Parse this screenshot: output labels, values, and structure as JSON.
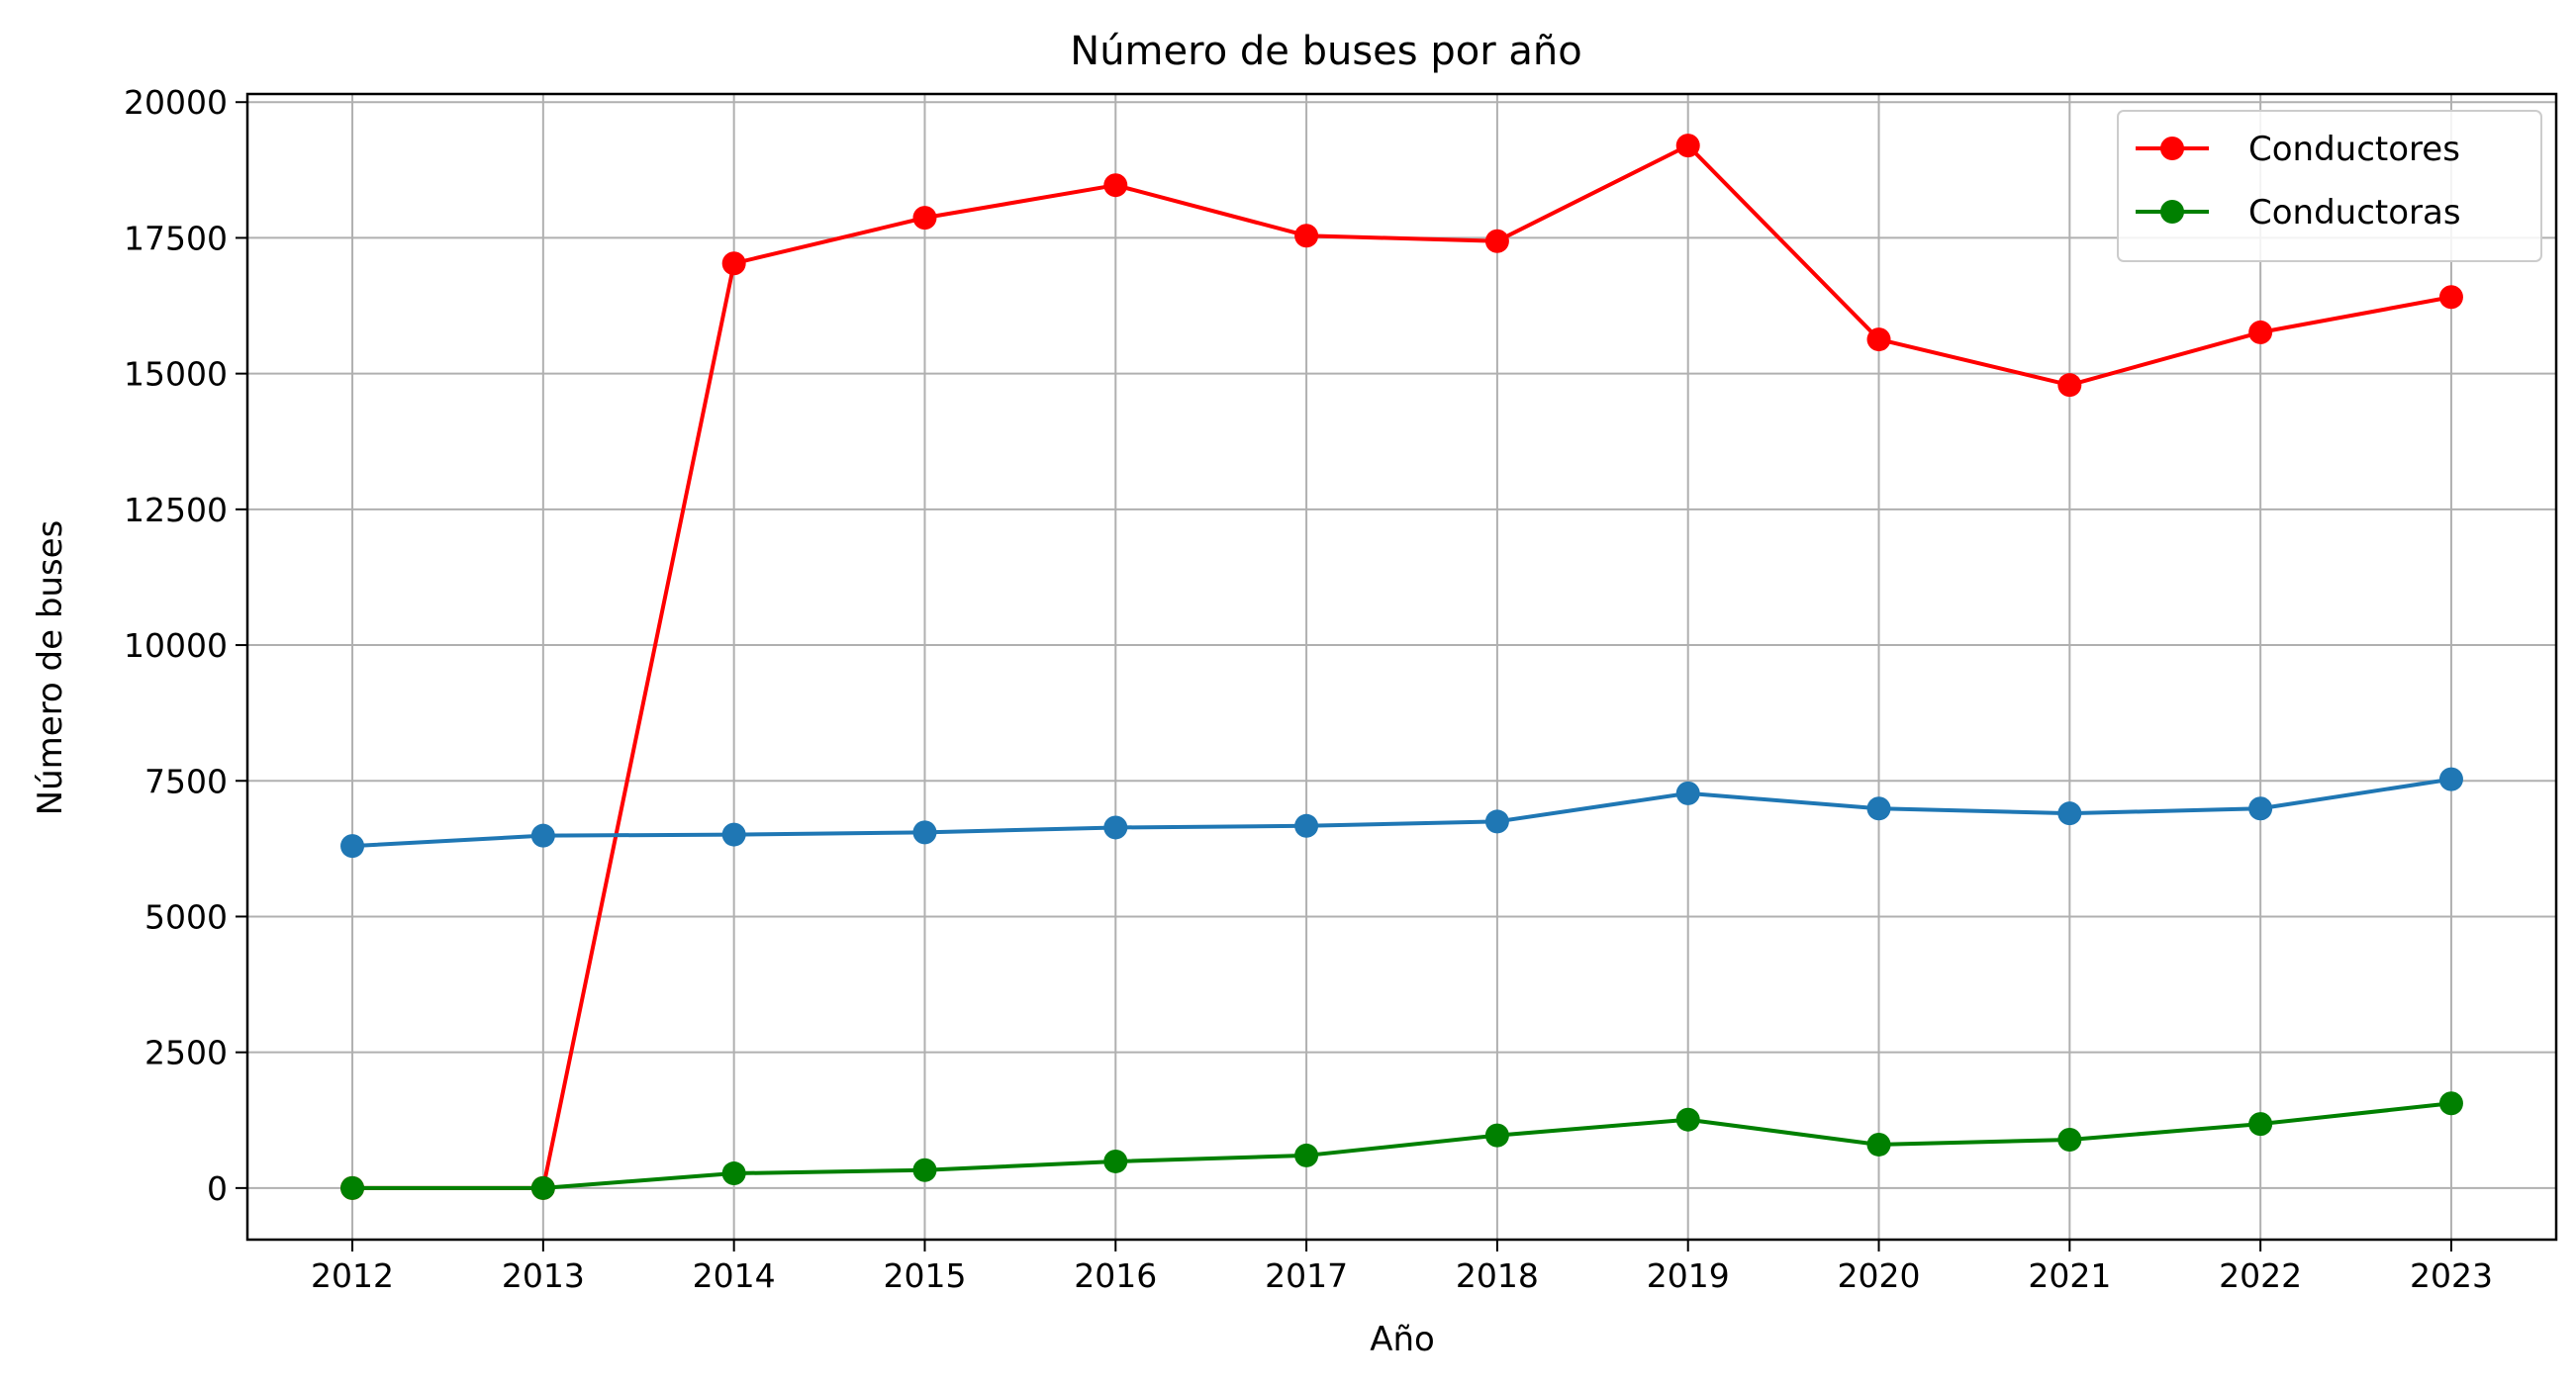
{
  "chart_data": {
    "type": "line",
    "title": "Número de buses por año",
    "xlabel": "Año",
    "ylabel": "Número de buses",
    "x": [
      2012,
      2013,
      2014,
      2015,
      2016,
      2017,
      2018,
      2019,
      2020,
      2021,
      2022,
      2023
    ],
    "xticks": [
      "2012",
      "2013",
      "2014",
      "2015",
      "2016",
      "2017",
      "2018",
      "2019",
      "2020",
      "2021",
      "2022",
      "2023"
    ],
    "yticks": [
      "0",
      "2500",
      "5000",
      "7500",
      "10000",
      "12500",
      "15000",
      "17500",
      "20000"
    ],
    "ylim": [
      -950,
      20150
    ],
    "xlim": [
      2011.45,
      2023.55
    ],
    "grid": true,
    "legend_position": "top-right",
    "series": [
      {
        "name": "Conductores",
        "color": "#ff0000",
        "marker": "circle",
        "in_legend": true,
        "values": [
          0,
          0,
          17030,
          17870,
          18470,
          17540,
          17440,
          19200,
          15630,
          14790,
          15760,
          16410
        ]
      },
      {
        "name": "Conductoras",
        "color": "#008000",
        "marker": "circle",
        "in_legend": true,
        "values": [
          0,
          0,
          270,
          330,
          490,
          600,
          970,
          1260,
          800,
          890,
          1180,
          1560
        ]
      },
      {
        "color": "#1f77b4",
        "marker": "circle",
        "in_legend": false,
        "values": [
          6300,
          6490,
          6510,
          6550,
          6640,
          6670,
          6750,
          7270,
          6990,
          6900,
          6990,
          7530
        ]
      }
    ]
  }
}
